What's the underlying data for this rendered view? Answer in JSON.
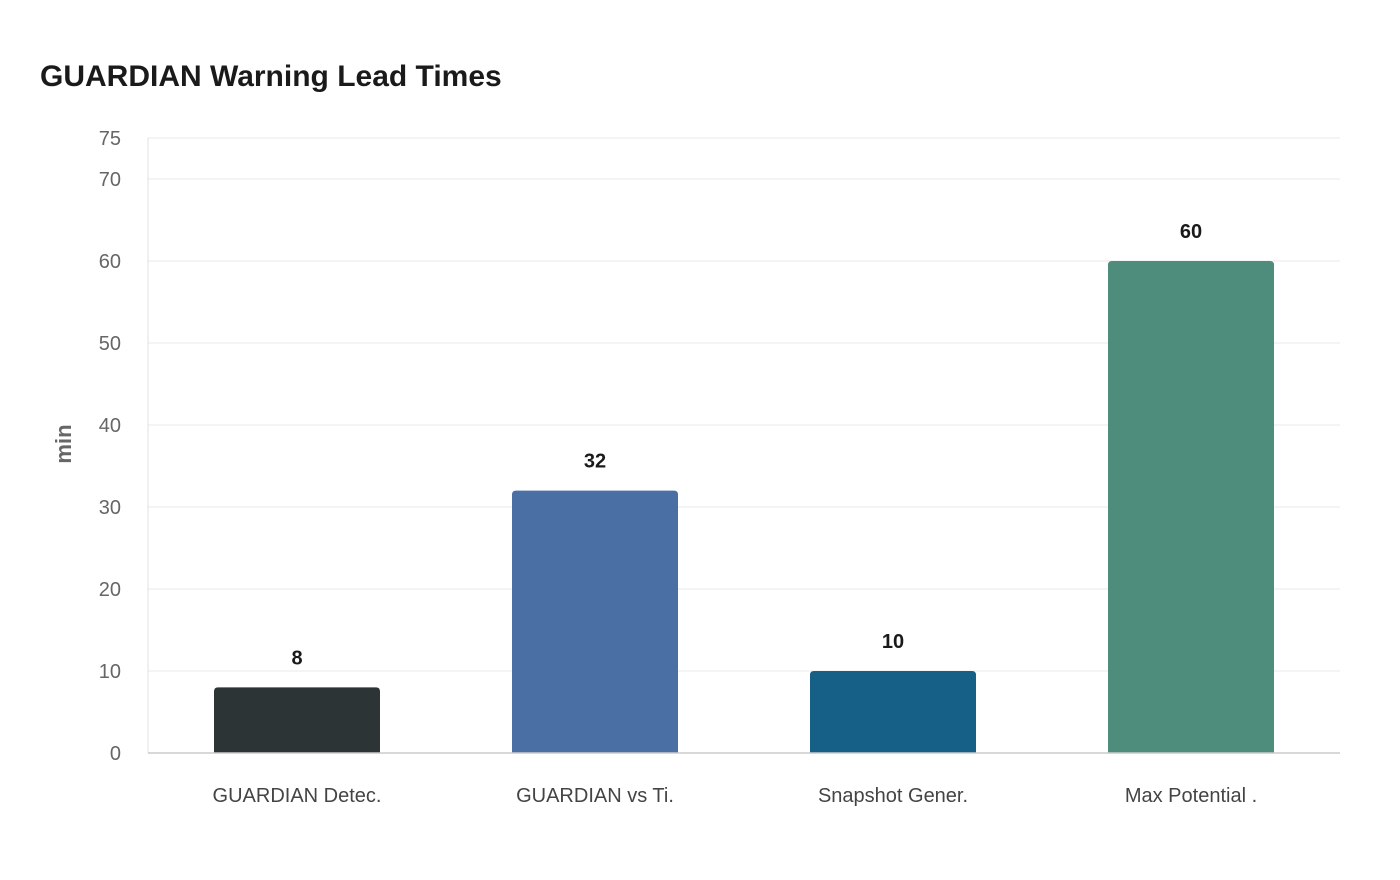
{
  "chart_data": {
    "type": "bar",
    "title": "GUARDIAN Warning Lead Times",
    "xlabel": "",
    "ylabel": "min",
    "ylim": [
      0,
      75
    ],
    "yticks": [
      0,
      10,
      20,
      30,
      40,
      50,
      60,
      70,
      75
    ],
    "grid": true,
    "legend": "none",
    "categories": [
      "GUARDIAN Detec.",
      "GUARDIAN vs Ti.",
      "Snapshot Gener.",
      "Max Potential ."
    ],
    "values": [
      8,
      32,
      10,
      60
    ],
    "data_labels": [
      "8",
      "32",
      "10",
      "60"
    ],
    "colors": [
      "#2d3436",
      "#4a6fa5",
      "#166088",
      "#4e8d7c"
    ]
  }
}
